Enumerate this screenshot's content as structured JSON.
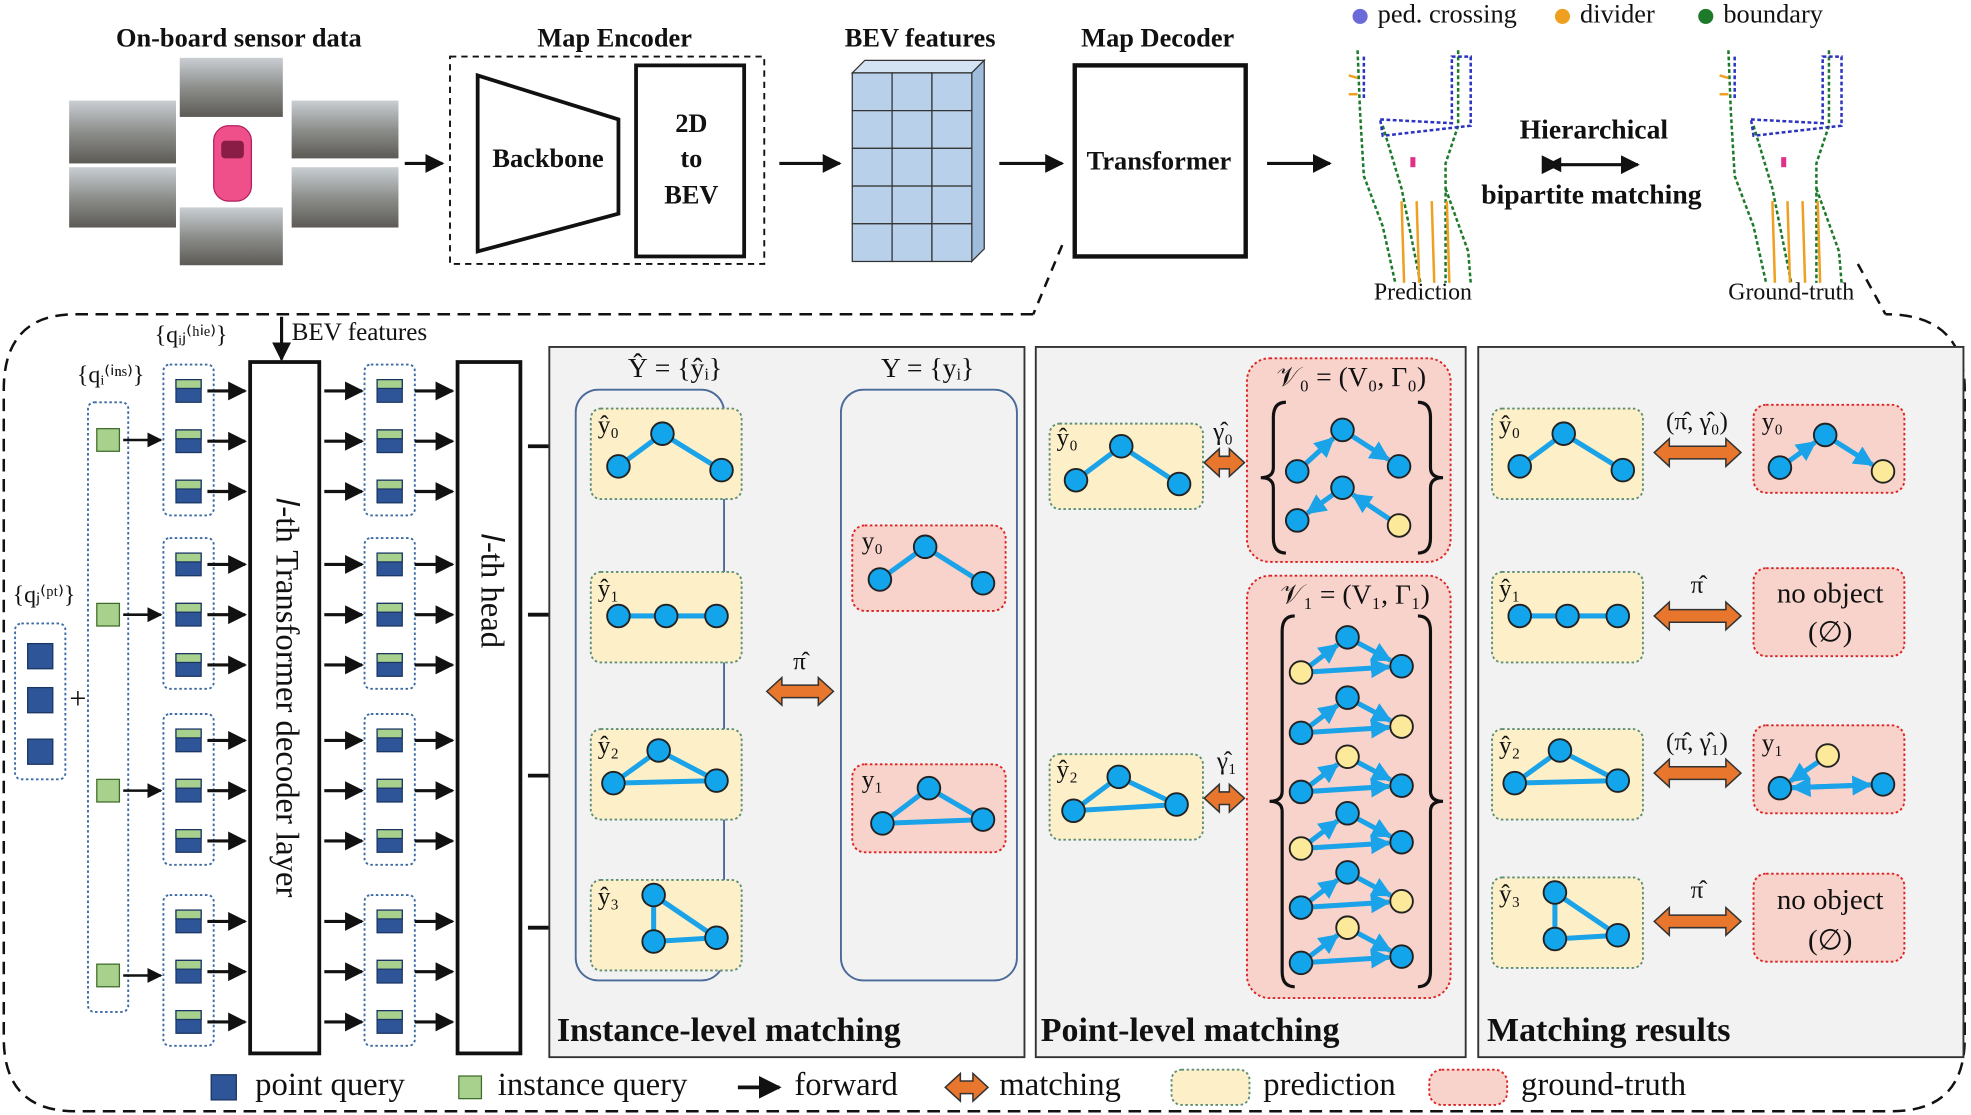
{
  "top": {
    "sensor_title": "On-board sensor data",
    "encoder_title": "Map Encoder",
    "backbone": "Backbone",
    "bev_transform": [
      "2D",
      "to",
      "BEV"
    ],
    "bev_title": "BEV features",
    "decoder_title": "Map Decoder",
    "transformer": "Transformer",
    "legend": [
      "ped. crossing",
      "divider",
      "boundary"
    ],
    "prediction_caption": "Prediction",
    "gt_caption": "Ground-truth",
    "matching": [
      "Hierarchical",
      "bipartite matching"
    ]
  },
  "decoder": {
    "hie_query": "{qᵢⱼ⁽ʰⁱᵉ⁾}",
    "ins_query": "{qᵢ⁽ⁱⁿˢ⁾}",
    "pt_query": "{qⱼ⁽ᵖᵗ⁾}",
    "plus": "+",
    "bev_input": "BEV features",
    "layer": "𝑙-th Transformer decoder layer",
    "head": "𝑙-th head"
  },
  "instance": {
    "pred_set": "Ŷ = {ŷᵢ}",
    "gt_set": "Y = {yᵢ}",
    "predictions": [
      "ŷ₀",
      "ŷ₁",
      "ŷ₂",
      "ŷ₃"
    ],
    "ground_truths": [
      "y₀",
      "y₁"
    ],
    "assignment": "π̂",
    "title": "Instance-level matching"
  },
  "point": {
    "predictions": [
      "ŷ₀",
      "ŷ₂"
    ],
    "assignments": [
      "γ̂₀",
      "γ̂₁"
    ],
    "sets": [
      "𝒱₀ = (V₀, Γ₀)",
      "𝒱₁ = (V₁, Γ₁)"
    ],
    "title": "Point-level matching"
  },
  "results": {
    "predictions": [
      "ŷ₀",
      "ŷ₁",
      "ŷ₂",
      "ŷ₃"
    ],
    "assignments": [
      "(π̂, γ̂₀)",
      "π̂",
      "(π̂, γ̂₁)",
      "π̂"
    ],
    "targets": [
      [
        "y₀"
      ],
      [
        "no object",
        "(∅)"
      ],
      [
        "y₁"
      ],
      [
        "no object",
        "(∅)"
      ]
    ],
    "title": "Matching results"
  },
  "legend": [
    "point query",
    "instance query",
    "forward",
    "matching",
    "prediction",
    "ground-truth"
  ]
}
